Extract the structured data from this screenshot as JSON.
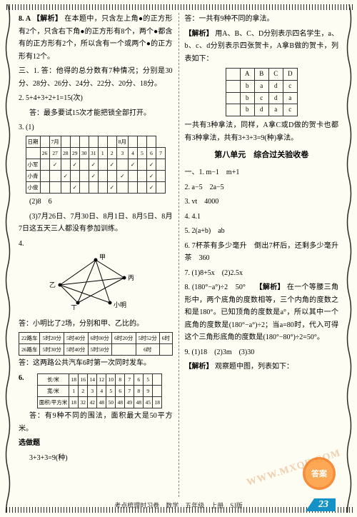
{
  "col_left": {
    "e8": {
      "prefix": "8. A",
      "label": "【解析】",
      "text": "在本题中，只含左上角●的正方形有2个，只含右下角●的正方形有8个，两个●都含有的正方形有2个，所以含有一个或两个●的正方形有12个。"
    },
    "san": "三、1. 答：他得的总分数有7种情况；分别是30分、28分、26分、24分、22分、20分、18分。",
    "e2": "2. 5+4+3+2+1=15(次)",
    "e2a": "答：最多要试15次才能把锁全部打开。",
    "e3_label": "3. (1)",
    "table3": {
      "rows": [
        [
          "日期",
          "",
          "7月",
          "",
          "",
          "",
          "",
          "",
          "",
          "8月",
          "",
          "",
          ""
        ],
        [
          "",
          "26",
          "27",
          "28",
          "29",
          "30",
          "31",
          "1",
          "2",
          "3",
          "4",
          "5",
          "6",
          "7"
        ],
        [
          "小军",
          "",
          "✓",
          "",
          "✓",
          "",
          "✓",
          "",
          "✓",
          "",
          "✓",
          "",
          "✓",
          ""
        ],
        [
          "小青",
          "",
          "",
          "✓",
          "",
          "",
          "✓",
          "",
          "",
          "✓",
          "",
          "",
          "✓",
          ""
        ],
        [
          "小俊",
          "",
          "",
          "",
          "✓",
          "",
          "",
          "",
          "✓",
          "",
          "",
          "",
          "✓",
          ""
        ]
      ]
    },
    "e3_2": "(2)8　6",
    "e3_3": "(3)7月26日、7月30日、8月1日、8月5日、8月7日这五天三人都没有参加训练。",
    "graph_labels": {
      "a": "甲",
      "b": "乙",
      "c": "丙",
      "d": "丁",
      "e": "小明"
    },
    "e4": "4.",
    "e4a": "答：小明比了2场，分别和甲、乙比的。",
    "table5": {
      "rows": [
        [
          "22路车",
          "5时20分",
          "5时40分",
          "6时00分",
          "6时20分",
          "5时52分",
          "6时"
        ],
        [
          "26路车",
          "5时30分",
          "5时40分",
          "5时50分",
          "",
          "6时",
          "　"
        ]
      ]
    },
    "e5a": "答：这两路公共汽车6时第一次同时发车。",
    "e6label": "6.",
    "table6": {
      "rows": [
        [
          "长/米",
          "18",
          "16",
          "14",
          "12",
          "10",
          "8",
          "7",
          "6",
          "5",
          ""
        ],
        [
          "宽/米",
          "1",
          "2",
          "3",
          "4",
          "5",
          "6",
          "7",
          "8",
          "9",
          ""
        ],
        [
          "面积/平方米",
          "18",
          "32",
          "42",
          "48",
          "50",
          "48",
          "49",
          "48",
          "45",
          "18"
        ]
      ]
    },
    "e6a": "答：有9种不同的围法，面积最大是50平方米。",
    "xuanzuo": "选做题",
    "xuanzuo_a": "3+3+3=9(种)"
  },
  "col_right": {
    "top": "答：一共有9种不同的拿法。",
    "jiexi_label": "【解析】",
    "jiexi": "用A、B、C、D分别表示四名学生，a、b、c、d分别表示四张贺卡，A拿B做的贺卡，列表如下：",
    "table_abcd": {
      "rows": [
        [
          "",
          "A",
          "B",
          "C",
          "D"
        ],
        [
          "",
          "b",
          "a",
          "d",
          "c"
        ],
        [
          "",
          "b",
          "c",
          "d",
          "a"
        ],
        [
          "",
          "b",
          "d",
          "a",
          "c"
        ]
      ]
    },
    "jiexi2": "一共有3种拿法，同样，A拿C或D做的贺卡也都有3种拿法，共有3+3+3=9(种)拿法。",
    "unit_heading": "第八单元　综合过关验收卷",
    "yi1": "一、1. m−1　m+1",
    "yi2": "2. a−5　2a−5",
    "yi3": "3. vt　4000",
    "yi4": "4. 4.1",
    "yi5": "5. 2(a+b)　ab",
    "yi6": "6. 7杯茶有多少毫升　倒出7杯后，还剩多少毫升茶　360",
    "yi7": "7. (1)8+5x　(2)2.5x",
    "yi8_prefix": "8. (180°−a°)÷2　50°　",
    "yi8_label": "【解析】",
    "yi8": "在一个等腰三角形中，两个底角的度数相等，三个内角的度数之和是180°。已知顶角的度数是a°，所以其中一个底角的度数是(180°−a°)÷2；当a=80时，代入可得这个三角形底角的度数是(180°−80°)÷2=50°。",
    "yi9": "9. (1)18　(2)3m　(3)30",
    "yi9_label": "【解析】",
    "yi9_text": "观察题中图，列表如下："
  },
  "footer": {
    "text": "考点梳理时习卷　数学　五年级　上册　SJ版",
    "page": "23"
  },
  "watermark": "答案",
  "url": "WWW.MXQE.COM",
  "colors": {
    "accent": "#1592c5",
    "watermark": "#fc9a3a"
  }
}
